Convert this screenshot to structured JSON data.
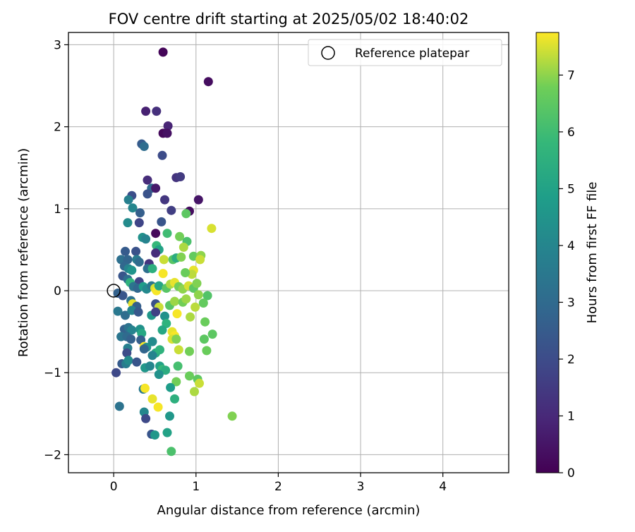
{
  "chart_data": {
    "type": "scatter",
    "title": "FOV centre drift starting at 2025/05/02 18:40:02",
    "xlabel": "Angular distance from reference (arcmin)",
    "ylabel": "Rotation from reference (arcmin)",
    "xlim": [
      -0.55,
      4.8
    ],
    "ylim": [
      -2.22,
      3.15
    ],
    "xticks": [
      "0",
      "1",
      "2",
      "3",
      "4"
    ],
    "xtick_values": [
      0,
      1,
      2,
      3,
      4
    ],
    "yticks": [
      "−2",
      "−1",
      "0",
      "1",
      "2",
      "3"
    ],
    "ytick_values": [
      -2,
      -1,
      0,
      1,
      2,
      3
    ],
    "grid": true,
    "legend": {
      "placement": "top-right",
      "entries": [
        "Reference platepar"
      ]
    },
    "reference_point": {
      "x": 0,
      "y": 0
    },
    "colorbar": {
      "label": "Hours from first FF file",
      "min": 0,
      "max": 7.75,
      "ticks": [
        "0",
        "1",
        "2",
        "3",
        "4",
        "5",
        "6",
        "7"
      ],
      "tick_values": [
        0,
        1,
        2,
        3,
        4,
        5,
        6,
        7
      ],
      "colormap": "viridis"
    },
    "points": [
      [
        0.6,
        2.91,
        0.1
      ],
      [
        1.15,
        2.55,
        0.3
      ],
      [
        0.39,
        2.19,
        0.8
      ],
      [
        0.52,
        2.19,
        1.2
      ],
      [
        0.66,
        2.01,
        0.9
      ],
      [
        0.6,
        1.92,
        0.2
      ],
      [
        0.65,
        1.92,
        0.4
      ],
      [
        0.34,
        1.79,
        2.5
      ],
      [
        0.37,
        1.76,
        3.1
      ],
      [
        0.59,
        1.65,
        2.0
      ],
      [
        0.76,
        1.38,
        1.3
      ],
      [
        0.81,
        1.39,
        1.5
      ],
      [
        0.41,
        1.35,
        1.1
      ],
      [
        0.46,
        1.25,
        3.0
      ],
      [
        0.51,
        1.25,
        0.6
      ],
      [
        0.41,
        1.18,
        2.2
      ],
      [
        0.22,
        1.16,
        2.1
      ],
      [
        0.18,
        1.11,
        3.8
      ],
      [
        0.62,
        1.11,
        1.4
      ],
      [
        1.03,
        1.11,
        0.5
      ],
      [
        0.23,
        1.01,
        4.0
      ],
      [
        0.32,
        0.95,
        2.6
      ],
      [
        0.7,
        0.98,
        1.6
      ],
      [
        0.92,
        0.97,
        0.3
      ],
      [
        0.88,
        0.94,
        6.5
      ],
      [
        0.17,
        0.83,
        4.2
      ],
      [
        0.31,
        0.83,
        1.8
      ],
      [
        0.58,
        0.84,
        2.3
      ],
      [
        0.51,
        0.7,
        0.2
      ],
      [
        0.65,
        0.7,
        6.0
      ],
      [
        1.19,
        0.76,
        7.5
      ],
      [
        0.35,
        0.65,
        4.4
      ],
      [
        0.39,
        0.63,
        3.9
      ],
      [
        0.8,
        0.66,
        6.8
      ],
      [
        0.89,
        0.6,
        6.2
      ],
      [
        0.52,
        0.55,
        5.8
      ],
      [
        0.55,
        0.5,
        5.0
      ],
      [
        0.14,
        0.48,
        2.5
      ],
      [
        0.27,
        0.48,
        2.2
      ],
      [
        0.51,
        0.46,
        1.1
      ],
      [
        0.85,
        0.53,
        7.2
      ],
      [
        0.97,
        0.42,
        6.6
      ],
      [
        1.06,
        0.43,
        7.0
      ],
      [
        1.05,
        0.38,
        7.4
      ],
      [
        0.09,
        0.38,
        3.2
      ],
      [
        0.17,
        0.38,
        2.8
      ],
      [
        0.28,
        0.38,
        3.6
      ],
      [
        0.31,
        0.35,
        3.0
      ],
      [
        0.43,
        0.33,
        1.3
      ],
      [
        0.61,
        0.38,
        7.4
      ],
      [
        0.72,
        0.38,
        6.4
      ],
      [
        0.76,
        0.4,
        5.4
      ],
      [
        0.82,
        0.41,
        6.9
      ],
      [
        0.13,
        0.3,
        2.9
      ],
      [
        0.18,
        0.27,
        3.9
      ],
      [
        0.22,
        0.25,
        4.5
      ],
      [
        0.41,
        0.27,
        3.2
      ],
      [
        0.47,
        0.27,
        5.5
      ],
      [
        0.97,
        0.25,
        7.6
      ],
      [
        0.95,
        0.2,
        7.3
      ],
      [
        0.87,
        0.22,
        6.7
      ],
      [
        0.6,
        0.21,
        7.7
      ],
      [
        0.11,
        0.18,
        2.3
      ],
      [
        0.17,
        0.14,
        3.1
      ],
      [
        0.2,
        0.1,
        5.6
      ],
      [
        0.31,
        0.11,
        1.8
      ],
      [
        0.24,
        0.05,
        3.4
      ],
      [
        0.29,
        0.03,
        2.9
      ],
      [
        0.36,
        0.05,
        4.8
      ],
      [
        0.4,
        0.02,
        4.1
      ],
      [
        0.46,
        0.06,
        3.5
      ],
      [
        0.5,
        0.03,
        7.5
      ],
      [
        0.52,
        0.0,
        7.7
      ],
      [
        0.55,
        0.06,
        5.1
      ],
      [
        0.64,
        0.03,
        6.4
      ],
      [
        0.69,
        0.08,
        7.2
      ],
      [
        0.74,
        0.1,
        7.6
      ],
      [
        0.79,
        0.05,
        6.8
      ],
      [
        0.84,
        0.02,
        7.0
      ],
      [
        0.91,
        0.06,
        7.5
      ],
      [
        0.97,
        0.03,
        6.5
      ],
      [
        1.01,
        0.09,
        6.9
      ],
      [
        1.03,
        -0.05,
        7.0
      ],
      [
        1.14,
        -0.06,
        6.3
      ],
      [
        0.05,
        -0.03,
        2.7
      ],
      [
        0.11,
        -0.06,
        2.3
      ],
      [
        0.21,
        -0.12,
        3.3
      ],
      [
        0.23,
        -0.16,
        7.6
      ],
      [
        0.28,
        -0.19,
        2.6
      ],
      [
        0.51,
        -0.16,
        2.2
      ],
      [
        0.55,
        -0.2,
        7.4
      ],
      [
        0.68,
        -0.18,
        6.4
      ],
      [
        0.74,
        -0.13,
        7.1
      ],
      [
        0.84,
        -0.14,
        6.8
      ],
      [
        0.88,
        -0.1,
        7.1
      ],
      [
        0.99,
        -0.2,
        7.3
      ],
      [
        1.09,
        -0.15,
        6.6
      ],
      [
        0.05,
        -0.25,
        3.5
      ],
      [
        0.14,
        -0.3,
        3.1
      ],
      [
        0.22,
        -0.24,
        3.9
      ],
      [
        0.3,
        -0.26,
        2.4
      ],
      [
        0.46,
        -0.3,
        4.6
      ],
      [
        0.51,
        -0.26,
        1.7
      ],
      [
        0.62,
        -0.31,
        4.4
      ],
      [
        0.77,
        -0.28,
        7.7
      ],
      [
        0.93,
        -0.32,
        7.2
      ],
      [
        1.11,
        -0.38,
        6.7
      ],
      [
        0.13,
        -0.47,
        2.7
      ],
      [
        0.18,
        -0.45,
        3.3
      ],
      [
        0.22,
        -0.48,
        3.9
      ],
      [
        0.32,
        -0.47,
        4.4
      ],
      [
        0.34,
        -0.52,
        5.2
      ],
      [
        0.64,
        -0.4,
        5.6
      ],
      [
        0.59,
        -0.48,
        5.2
      ],
      [
        0.71,
        -0.5,
        7.6
      ],
      [
        0.74,
        -0.55,
        7.7
      ],
      [
        1.2,
        -0.53,
        6.5
      ],
      [
        0.09,
        -0.56,
        3.4
      ],
      [
        0.16,
        -0.56,
        3.0
      ],
      [
        0.21,
        -0.59,
        2.7
      ],
      [
        0.33,
        -0.6,
        2.6
      ],
      [
        0.47,
        -0.62,
        4.2
      ],
      [
        0.71,
        -0.59,
        7.5
      ],
      [
        0.76,
        -0.59,
        6.9
      ],
      [
        1.1,
        -0.59,
        6.5
      ],
      [
        0.17,
        -0.7,
        3.8
      ],
      [
        0.37,
        -0.68,
        7.7
      ],
      [
        0.4,
        -0.69,
        4.4
      ],
      [
        0.51,
        -0.76,
        5.3
      ],
      [
        0.56,
        -0.72,
        5.6
      ],
      [
        0.79,
        -0.72,
        7.4
      ],
      [
        0.92,
        -0.74,
        6.8
      ],
      [
        1.13,
        -0.73,
        6.7
      ],
      [
        0.16,
        -0.76,
        2.0
      ],
      [
        0.37,
        -0.71,
        2.8
      ],
      [
        0.47,
        -0.79,
        3.9
      ],
      [
        0.1,
        -0.89,
        2.5
      ],
      [
        0.15,
        -0.89,
        3.7
      ],
      [
        0.18,
        -0.85,
        4.2
      ],
      [
        0.28,
        -0.87,
        2.3
      ],
      [
        0.38,
        -0.94,
        4.6
      ],
      [
        0.44,
        -0.92,
        4.0
      ],
      [
        0.56,
        -0.92,
        5.0
      ],
      [
        0.59,
        -0.96,
        5.8
      ],
      [
        0.63,
        -0.97,
        5.4
      ],
      [
        0.78,
        -0.92,
        6.1
      ],
      [
        0.03,
        -1.0,
        1.9
      ],
      [
        0.55,
        -1.02,
        4.4
      ],
      [
        0.92,
        -1.04,
        6.7
      ],
      [
        1.02,
        -1.08,
        6.5
      ],
      [
        0.76,
        -1.11,
        6.8
      ],
      [
        1.04,
        -1.13,
        7.4
      ],
      [
        0.36,
        -1.2,
        3.5
      ],
      [
        0.38,
        -1.19,
        7.7
      ],
      [
        0.69,
        -1.18,
        4.8
      ],
      [
        0.98,
        -1.23,
        7.2
      ],
      [
        0.47,
        -1.32,
        7.6
      ],
      [
        0.74,
        -1.32,
        5.5
      ],
      [
        0.07,
        -1.41,
        3.3
      ],
      [
        0.54,
        -1.42,
        7.7
      ],
      [
        0.37,
        -1.48,
        4.0
      ],
      [
        0.68,
        -1.53,
        4.6
      ],
      [
        1.44,
        -1.53,
        6.9
      ],
      [
        0.39,
        -1.56,
        1.9
      ],
      [
        0.46,
        -1.75,
        2.3
      ],
      [
        0.5,
        -1.76,
        4.6
      ],
      [
        0.65,
        -1.73,
        5.0
      ],
      [
        0.7,
        -1.96,
        6.2
      ]
    ]
  }
}
